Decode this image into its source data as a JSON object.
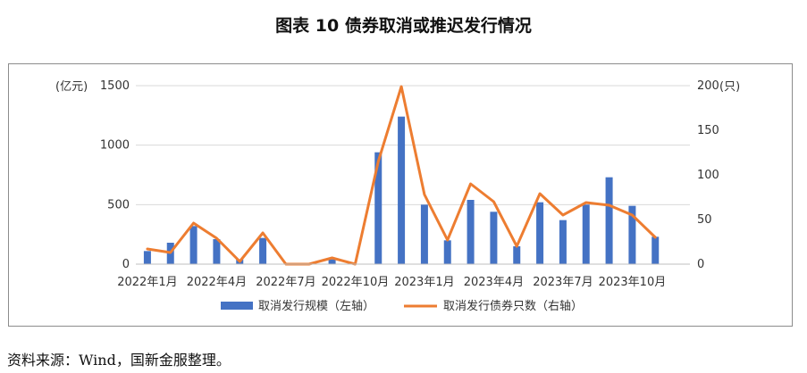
{
  "page": {
    "title": "图表 10  债券取消或推迟发行情况",
    "source": "资料来源：Wind，国新金服整理。"
  },
  "colors": {
    "bar": "#4472C4",
    "line": "#ED7D31",
    "grid": "#d9d9d9"
  },
  "chart_data": {
    "type": "bar",
    "left_unit": "(亿元)",
    "right_unit": "(只)",
    "left_axis": {
      "min": 0,
      "max": 1500,
      "ticks": [
        0,
        500,
        1000,
        1500
      ]
    },
    "right_axis": {
      "min": 0,
      "max": 200,
      "ticks": [
        0,
        50,
        100,
        150,
        200
      ]
    },
    "grid": true,
    "legend_position": "bottom",
    "x_tick_labels": [
      "2022年1月",
      "2022年4月",
      "2022年7月",
      "2022年10月",
      "2023年1月",
      "2023年4月",
      "2023年7月",
      "2023年10月"
    ],
    "categories": [
      "2022-01",
      "2022-02",
      "2022-03",
      "2022-04",
      "2022-05",
      "2022-06",
      "2022-07",
      "2022-08",
      "2022-09",
      "2022-10",
      "2022-11",
      "2022-12",
      "2023-01",
      "2023-02",
      "2023-03",
      "2023-04",
      "2023-05",
      "2023-06",
      "2023-07",
      "2023-08",
      "2023-09",
      "2023-10",
      "2023-11",
      "2023-12"
    ],
    "series": [
      {
        "name": "取消发行规模（左轴）",
        "type": "bar",
        "axis": "left",
        "values": [
          110,
          180,
          320,
          210,
          40,
          220,
          0,
          0,
          40,
          0,
          940,
          1240,
          500,
          200,
          540,
          440,
          150,
          520,
          370,
          500,
          730,
          490,
          230,
          0
        ]
      },
      {
        "name": "取消发行债券只数（右轴）",
        "type": "line",
        "axis": "right",
        "values": [
          17,
          13,
          46,
          29,
          3,
          35,
          0,
          0,
          7,
          0,
          115,
          199,
          78,
          27,
          90,
          70,
          20,
          79,
          55,
          69,
          66,
          55,
          30,
          null
        ]
      }
    ]
  }
}
